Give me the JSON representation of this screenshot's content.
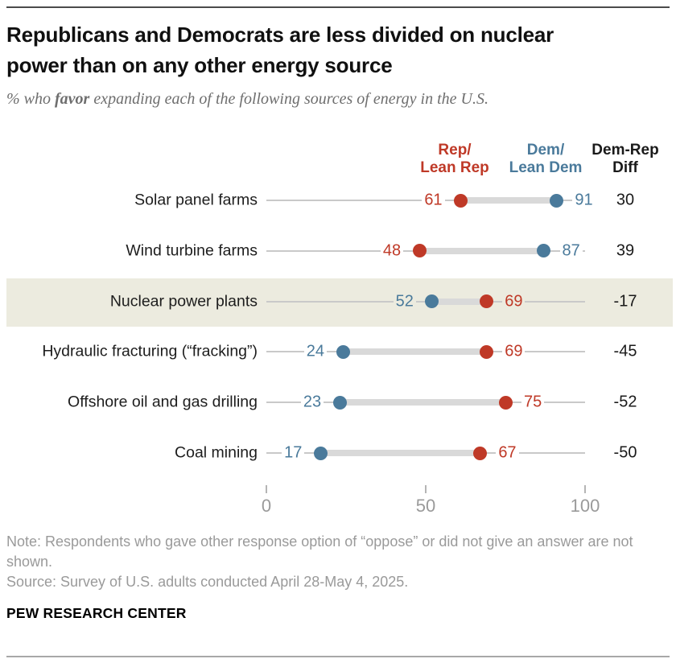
{
  "header": {
    "title": "Republicans and Democrats are less divided on nuclear power than on any other energy source",
    "subtitle_prefix": "% who ",
    "subtitle_emphasis": "favor",
    "subtitle_suffix": " expanding each of the following sources of energy in the U.S."
  },
  "legend": {
    "rep_line1": "Rep/",
    "rep_line2": "Lean Rep",
    "dem_line1": "Dem/",
    "dem_line2": "Lean Dem",
    "diff_line1": "Dem-Rep",
    "diff_line2": "Diff"
  },
  "chart_data": {
    "type": "dumbbell",
    "categories": [
      "Solar panel farms",
      "Wind turbine farms",
      "Nuclear power plants",
      "Hydraulic fracturing (“fracking”)",
      "Offshore oil and gas drilling",
      "Coal mining"
    ],
    "series": [
      {
        "name": "Rep/Lean Rep",
        "values": [
          61,
          48,
          69,
          69,
          75,
          67
        ]
      },
      {
        "name": "Dem/Lean Dem",
        "values": [
          91,
          87,
          52,
          24,
          23,
          17
        ]
      }
    ],
    "diff_label": "Dem-Rep Diff",
    "diff_values": [
      30,
      39,
      -17,
      -45,
      -52,
      -50
    ],
    "highlighted_category": "Nuclear power plants",
    "xlim": [
      0,
      100
    ],
    "x_ticks": [
      0,
      50,
      100
    ],
    "grid": false,
    "legend_position": "top"
  },
  "colors": {
    "rep": "#bf3927",
    "dem": "#4a7a9b",
    "diff_text": "#1a1a1a",
    "highlight_band": "#ecebdf",
    "baseline": "#c9c9c9",
    "connector_bar": "#d9d9d9"
  },
  "notes": {
    "note": "Note: Respondents who gave other response option of “oppose” or did not give an answer are not shown.",
    "source": "Source: Survey of U.S. adults conducted April 28-May 4, 2025.",
    "brand": "PEW RESEARCH CENTER"
  }
}
